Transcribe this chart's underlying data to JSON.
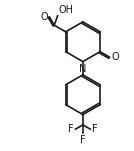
{
  "bg_color": "#ffffff",
  "line_color": "#1a1a1a",
  "line_width": 1.2,
  "font_size": 7.0,
  "fig_width": 1.34,
  "fig_height": 1.51,
  "dpi": 100,
  "xlim": [
    0,
    10
  ],
  "ylim": [
    0,
    11.3
  ]
}
